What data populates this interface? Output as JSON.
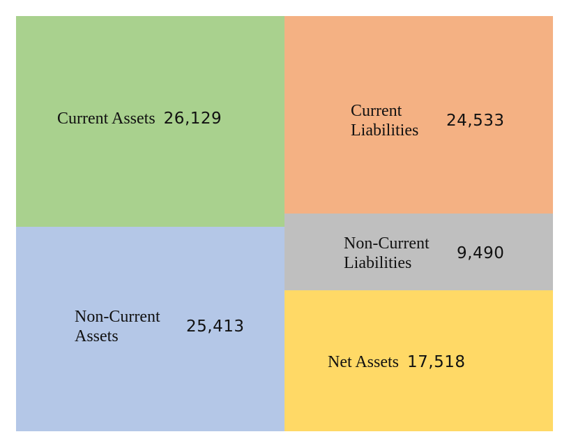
{
  "chart_data": {
    "type": "treemap",
    "title": "",
    "groups": [
      {
        "items": [
          {
            "name": "Current Assets",
            "value": 26129,
            "value_label": "26,129",
            "color": "#A9D18E"
          },
          {
            "name": "Non-Current Assets",
            "value": 25413,
            "value_label": "25,413",
            "color": "#B4C7E7"
          }
        ]
      },
      {
        "items": [
          {
            "name": "Current Liabilities",
            "value": 24533,
            "value_label": "24,533",
            "color": "#F4B183"
          },
          {
            "name": "Non-Current Liabilities",
            "value": 9490,
            "value_label": "9,490",
            "color": "#BFBFBF"
          },
          {
            "name": "Net Assets",
            "value": 17518,
            "value_label": "17,518",
            "color": "#FFD966"
          }
        ]
      }
    ]
  }
}
